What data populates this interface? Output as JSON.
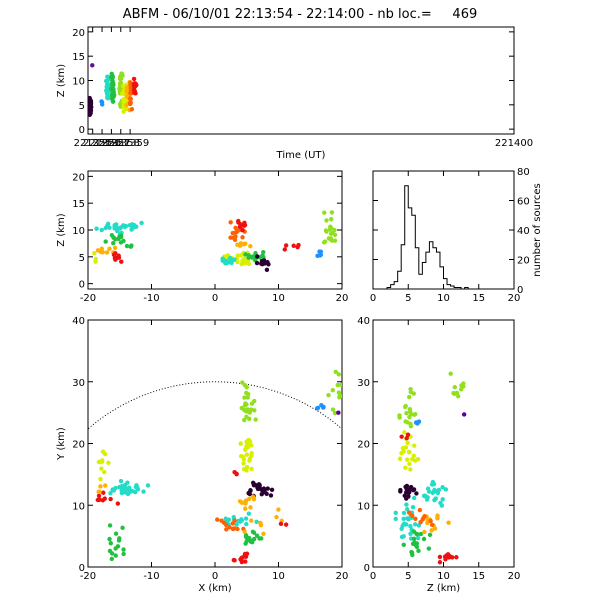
{
  "title": "ABFM - 06/10/01 22:13:54 - 22:14:00 - nb loc.=     469",
  "chart_data": [
    {
      "id": "panel-time-z",
      "type": "scatter",
      "xlabel": "Time (UT)",
      "ylabel": "Z (km)",
      "xlim": [
        221354.5,
        221400
      ],
      "ylim": [
        -1,
        21
      ],
      "xticks": [
        221355,
        221356,
        221357,
        221358,
        221359,
        221400
      ],
      "xtick_labels": [
        "221355",
        "221356",
        "221357",
        "221358",
        "221359",
        "221400"
      ],
      "yticks": [
        0,
        5,
        10,
        15,
        20
      ],
      "ytick_labels": [
        "0",
        "5",
        "10",
        "15",
        "20"
      ],
      "clusters": [
        {
          "x": 221354.75,
          "y": 4.5,
          "sx": 0.1,
          "sy": 1.2,
          "n": 40,
          "color": "#2a0033"
        },
        {
          "x": 221354.95,
          "y": 13.0,
          "sx": 0.01,
          "sy": 0.1,
          "n": 1,
          "color": "#6a0a8f"
        },
        {
          "x": 221355.98,
          "y": 5.5,
          "sx": 0.03,
          "sy": 0.3,
          "n": 3,
          "color": "#1e90ff"
        },
        {
          "x": 221356.6,
          "y": 8.5,
          "sx": 0.1,
          "sy": 1.5,
          "n": 30,
          "color": "#22dcc8"
        },
        {
          "x": 221357.15,
          "y": 8.0,
          "sx": 0.12,
          "sy": 2.0,
          "n": 30,
          "color": "#22c040"
        },
        {
          "x": 221358.0,
          "y": 9.0,
          "sx": 0.12,
          "sy": 2.2,
          "n": 35,
          "color": "#90e020"
        },
        {
          "x": 221358.4,
          "y": 6.5,
          "sx": 0.15,
          "sy": 2.0,
          "n": 35,
          "color": "#d8f000"
        },
        {
          "x": 221358.8,
          "y": 7.5,
          "sx": 0.15,
          "sy": 2.0,
          "n": 25,
          "color": "#ffb000"
        },
        {
          "x": 221359.1,
          "y": 7.5,
          "sx": 0.12,
          "sy": 2.0,
          "n": 15,
          "color": "#ff6000"
        },
        {
          "x": 221359.5,
          "y": 8.5,
          "sx": 0.1,
          "sy": 1.5,
          "n": 15,
          "color": "#ee1111"
        }
      ]
    },
    {
      "id": "panel-x-z",
      "type": "scatter",
      "xlabel": "",
      "ylabel": "Z (km)",
      "xlim": [
        -20,
        20
      ],
      "ylim": [
        -1,
        21
      ],
      "xticks": [
        -20,
        -10,
        0,
        10,
        20
      ],
      "xtick_labels": [
        "-20",
        "-10",
        "0",
        "10",
        "20"
      ],
      "yticks": [
        0,
        5,
        10,
        15,
        20
      ],
      "ytick_labels": [
        "0",
        "5",
        "10",
        "15",
        "20"
      ],
      "clusters": [
        {
          "x": -15,
          "y": 10.5,
          "sx": 2.0,
          "sy": 0.8,
          "n": 30,
          "color": "#22dcc8"
        },
        {
          "x": -15,
          "y": 8.0,
          "sx": 1.5,
          "sy": 1.0,
          "n": 15,
          "color": "#22c040"
        },
        {
          "x": -17,
          "y": 6.0,
          "sx": 1.0,
          "sy": 0.8,
          "n": 8,
          "color": "#ffb000"
        },
        {
          "x": -15.5,
          "y": 5.0,
          "sx": 1.0,
          "sy": 0.7,
          "n": 8,
          "color": "#ee1111"
        },
        {
          "x": -19,
          "y": 5.0,
          "sx": 0.5,
          "sy": 0.6,
          "n": 3,
          "color": "#d8f000"
        },
        {
          "x": 4,
          "y": 4.5,
          "sx": 1.5,
          "sy": 0.8,
          "n": 35,
          "color": "#d8f000"
        },
        {
          "x": 2,
          "y": 4.3,
          "sx": 1.0,
          "sy": 0.4,
          "n": 15,
          "color": "#22dcc8"
        },
        {
          "x": 6.5,
          "y": 5.0,
          "sx": 1.0,
          "sy": 0.6,
          "n": 15,
          "color": "#22c040"
        },
        {
          "x": 7.5,
          "y": 3.8,
          "sx": 0.8,
          "sy": 0.7,
          "n": 15,
          "color": "#2a0033"
        },
        {
          "x": 3.5,
          "y": 9.5,
          "sx": 1.0,
          "sy": 1.5,
          "n": 15,
          "color": "#ff6000"
        },
        {
          "x": 4,
          "y": 11.0,
          "sx": 0.6,
          "sy": 0.8,
          "n": 8,
          "color": "#ee1111"
        },
        {
          "x": 5,
          "y": 7.0,
          "sx": 1.5,
          "sy": 0.5,
          "n": 8,
          "color": "#ffb000"
        },
        {
          "x": 11,
          "y": 6.8,
          "sx": 1.5,
          "sy": 0.4,
          "n": 5,
          "color": "#ee1111"
        },
        {
          "x": 18,
          "y": 9.5,
          "sx": 0.8,
          "sy": 2.5,
          "n": 20,
          "color": "#90e020"
        },
        {
          "x": 16.5,
          "y": 5.5,
          "sx": 0.5,
          "sy": 0.3,
          "n": 5,
          "color": "#1e90ff"
        }
      ]
    },
    {
      "id": "panel-histogram",
      "type": "histogram",
      "xlabel": "",
      "ylabel": "number of sources",
      "xlim": [
        0,
        20
      ],
      "ylim": [
        0,
        80
      ],
      "xticks": [
        0,
        5,
        10,
        15,
        20
      ],
      "xtick_labels": [
        "0",
        "5",
        "10",
        "15",
        "20"
      ],
      "yticks": [
        0,
        20,
        40,
        60,
        80
      ],
      "ytick_labels": [
        "0",
        "20",
        "40",
        "60",
        "80"
      ],
      "bin_width": 0.5,
      "bin_start": 2.0,
      "counts": [
        1,
        3,
        5,
        12,
        30,
        70,
        55,
        50,
        28,
        10,
        18,
        25,
        32,
        28,
        25,
        15,
        7,
        3,
        2,
        1,
        1,
        0,
        1
      ]
    },
    {
      "id": "panel-x-y",
      "type": "scatter",
      "xlabel": "X (km)",
      "ylabel": "Y (km)",
      "xlim": [
        -20,
        20
      ],
      "ylim": [
        0,
        40
      ],
      "xticks": [
        -20,
        -10,
        0,
        10,
        20
      ],
      "xtick_labels": [
        "-20",
        "-10",
        "0",
        "10",
        "20"
      ],
      "yticks": [
        0,
        10,
        20,
        30,
        40
      ],
      "ytick_labels": [
        "0",
        "10",
        "20",
        "30",
        "40"
      ],
      "range_circle_radius": 30,
      "clusters": [
        {
          "x": 5,
          "y": 26.0,
          "sx": 0.8,
          "sy": 2.5,
          "n": 25,
          "color": "#90e020"
        },
        {
          "x": 5,
          "y": 18.5,
          "sx": 0.8,
          "sy": 2.5,
          "n": 25,
          "color": "#d8f000"
        },
        {
          "x": 7,
          "y": 12.5,
          "sx": 1.5,
          "sy": 0.8,
          "n": 25,
          "color": "#2a0033"
        },
        {
          "x": 3.5,
          "y": 15.5,
          "sx": 0.3,
          "sy": 0.6,
          "n": 3,
          "color": "#ee1111"
        },
        {
          "x": 5,
          "y": 10.5,
          "sx": 1.5,
          "sy": 0.8,
          "n": 10,
          "color": "#ffb000"
        },
        {
          "x": 4,
          "y": 7.5,
          "sx": 2.0,
          "sy": 0.8,
          "n": 15,
          "color": "#22dcc8"
        },
        {
          "x": 6,
          "y": 4.5,
          "sx": 1.5,
          "sy": 0.8,
          "n": 15,
          "color": "#22c040"
        },
        {
          "x": 3,
          "y": 6.5,
          "sx": 1.5,
          "sy": 1.0,
          "n": 12,
          "color": "#ff6000"
        },
        {
          "x": 4,
          "y": 1.5,
          "sx": 0.8,
          "sy": 0.6,
          "n": 12,
          "color": "#ee1111"
        },
        {
          "x": 8,
          "y": 7.0,
          "sx": 2.0,
          "sy": 1.5,
          "n": 8,
          "color": "#ffb000"
        },
        {
          "x": -14,
          "y": 12.5,
          "sx": 2.5,
          "sy": 0.8,
          "n": 30,
          "color": "#22dcc8"
        },
        {
          "x": -17,
          "y": 11.0,
          "sx": 1.0,
          "sy": 1.0,
          "n": 8,
          "color": "#ee1111"
        },
        {
          "x": -18,
          "y": 17.5,
          "sx": 1.2,
          "sy": 2.0,
          "n": 10,
          "color": "#d8f000"
        },
        {
          "x": -15,
          "y": 4.0,
          "sx": 1.2,
          "sy": 2.5,
          "n": 15,
          "color": "#22c040"
        },
        {
          "x": -18,
          "y": 12.5,
          "sx": 0.5,
          "sy": 1.0,
          "n": 4,
          "color": "#ffb000"
        },
        {
          "x": 19,
          "y": 28.5,
          "sx": 0.8,
          "sy": 2.0,
          "n": 12,
          "color": "#90e020"
        },
        {
          "x": 16.5,
          "y": 25.8,
          "sx": 0.5,
          "sy": 0.3,
          "n": 5,
          "color": "#1e90ff"
        },
        {
          "x": 19.5,
          "y": 25.0,
          "sx": 0.1,
          "sy": 0.1,
          "n": 1,
          "color": "#5a00a0"
        },
        {
          "x": 11,
          "y": 7.0,
          "sx": 0.5,
          "sy": 0.3,
          "n": 2,
          "color": "#ee1111"
        }
      ]
    },
    {
      "id": "panel-z-y",
      "type": "scatter",
      "xlabel": "Z (km)",
      "ylabel": "",
      "xlim": [
        0,
        20
      ],
      "ylim": [
        0,
        40
      ],
      "xticks": [
        0,
        5,
        10,
        15,
        20
      ],
      "xtick_labels": [
        "0",
        "5",
        "10",
        "15",
        "20"
      ],
      "yticks": [
        0,
        10,
        20,
        30,
        40
      ],
      "ytick_labels": [
        "0",
        "10",
        "20",
        "30",
        "40"
      ],
      "clusters": [
        {
          "x": 5,
          "y": 26.0,
          "sx": 0.8,
          "sy": 2.5,
          "n": 20,
          "color": "#90e020"
        },
        {
          "x": 5,
          "y": 18.5,
          "sx": 0.8,
          "sy": 2.5,
          "n": 20,
          "color": "#d8f000"
        },
        {
          "x": 5,
          "y": 12.5,
          "sx": 0.8,
          "sy": 0.8,
          "n": 20,
          "color": "#2a0033"
        },
        {
          "x": 8.5,
          "y": 12.0,
          "sx": 1.5,
          "sy": 1.5,
          "n": 25,
          "color": "#22dcc8"
        },
        {
          "x": 5,
          "y": 7.0,
          "sx": 1.2,
          "sy": 2.5,
          "n": 25,
          "color": "#22dcc8"
        },
        {
          "x": 6,
          "y": 4.0,
          "sx": 1.2,
          "sy": 1.5,
          "n": 20,
          "color": "#22c040"
        },
        {
          "x": 10.5,
          "y": 1.5,
          "sx": 1.0,
          "sy": 0.7,
          "n": 12,
          "color": "#ee1111"
        },
        {
          "x": 8.5,
          "y": 7.0,
          "sx": 1.5,
          "sy": 1.5,
          "n": 12,
          "color": "#ffb000"
        },
        {
          "x": 7,
          "y": 8.0,
          "sx": 1.5,
          "sy": 1.0,
          "n": 10,
          "color": "#ff6000"
        },
        {
          "x": 12,
          "y": 29.0,
          "sx": 1.0,
          "sy": 1.5,
          "n": 10,
          "color": "#90e020"
        },
        {
          "x": 6.3,
          "y": 23.5,
          "sx": 0.2,
          "sy": 0.2,
          "n": 3,
          "color": "#1e90ff"
        },
        {
          "x": 13,
          "y": 24.8,
          "sx": 0.1,
          "sy": 0.1,
          "n": 1,
          "color": "#5a00a0"
        },
        {
          "x": 4.5,
          "y": 21.0,
          "sx": 0.5,
          "sy": 0.5,
          "n": 3,
          "color": "#ee1111"
        }
      ]
    }
  ]
}
